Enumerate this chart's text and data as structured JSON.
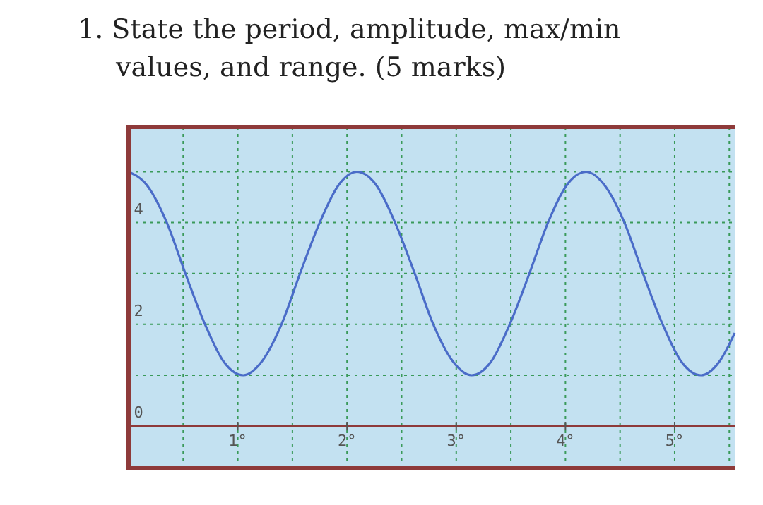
{
  "chart_data": {
    "type": "line",
    "title": "1. State the period, amplitude, max/min values, and range. (5 marks)",
    "x": [
      0,
      0.17,
      0.35,
      0.52,
      0.7,
      0.87,
      1.05,
      1.22,
      1.4,
      1.57,
      1.75,
      1.92,
      2.09,
      2.27,
      2.44,
      2.62,
      2.79,
      2.97,
      3.14,
      3.32,
      3.49,
      3.67,
      3.84,
      4.01,
      4.19,
      4.36,
      4.54,
      4.71,
      4.89,
      5.06,
      5.24,
      5.41,
      5.55
    ],
    "series": [
      {
        "color": "#4a6cc8",
        "values": [
          5,
          4.73,
          4,
          3,
          2,
          1.27,
          1,
          1.27,
          2,
          3,
          4,
          4.73,
          5,
          4.73,
          4,
          3,
          2,
          1.27,
          1,
          1.27,
          2,
          3,
          4,
          4.73,
          5,
          4.73,
          4,
          3,
          2,
          1.27,
          1,
          1.27,
          1.83
        ]
      }
    ],
    "xlim": [
      0,
      5.55
    ],
    "ylim": [
      -0.83,
      5.88
    ],
    "xticks": [
      {
        "value": 0.5,
        "label": null
      },
      {
        "value": 1,
        "label": "1°"
      },
      {
        "value": 1.5,
        "label": null
      },
      {
        "value": 2,
        "label": "2°"
      },
      {
        "value": 2.5,
        "label": null
      },
      {
        "value": 3,
        "label": "3°"
      },
      {
        "value": 3.5,
        "label": null
      },
      {
        "value": 4,
        "label": "4°"
      },
      {
        "value": 4.5,
        "label": null
      },
      {
        "value": 5,
        "label": "5°"
      },
      {
        "value": 5.5,
        "label": null
      }
    ],
    "yticks": [
      0,
      {
        "value": 1,
        "label": null
      },
      2,
      {
        "value": 3,
        "label": null
      },
      4,
      {
        "value": 5,
        "label": null
      }
    ],
    "grid": true,
    "marker": "none",
    "line_style": "solid"
  }
}
